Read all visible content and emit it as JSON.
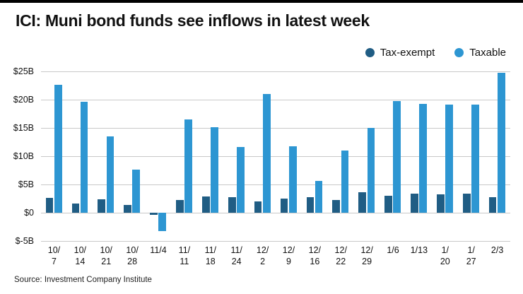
{
  "header": {
    "title": "ICI: Muni bond funds see inflows in latest week"
  },
  "legend": [
    {
      "label": "Tax-exempt",
      "color": "#205d84"
    },
    {
      "label": "Taxable",
      "color": "#2d96d2"
    }
  ],
  "source": "Source: Investment Company Institute",
  "chart_data": {
    "type": "bar",
    "title": "ICI: Muni bond funds see inflows in latest week",
    "xlabel": "",
    "ylabel": "",
    "ylim": [
      -5,
      25
    ],
    "grid": true,
    "legend_position": "top-right",
    "y_ticks": [
      25,
      20,
      15,
      10,
      5,
      0,
      -5
    ],
    "y_tick_labels": [
      "$25B",
      "$20B",
      "$15B",
      "$10B",
      "$5B",
      "$0",
      "$-5B"
    ],
    "categories": [
      "10/7",
      "10/14",
      "10/21",
      "10/28",
      "11/4",
      "11/11",
      "11/18",
      "11/24",
      "12/2",
      "12/9",
      "12/16",
      "12/22",
      "12/29",
      "1/6",
      "1/13",
      "1/20",
      "1/27",
      "2/3"
    ],
    "category_label_lines": [
      [
        "10/",
        "7"
      ],
      [
        "10/",
        "14"
      ],
      [
        "10/",
        "21"
      ],
      [
        "10/",
        "28"
      ],
      [
        "11/4"
      ],
      [
        "11/",
        "11"
      ],
      [
        "11/",
        "18"
      ],
      [
        "11/",
        "24"
      ],
      [
        "12/",
        "2"
      ],
      [
        "12/",
        "9"
      ],
      [
        "12/",
        "16"
      ],
      [
        "12/",
        "22"
      ],
      [
        "12/",
        "29"
      ],
      [
        "1/6"
      ],
      [
        "1/13"
      ],
      [
        "1/",
        "20"
      ],
      [
        "1/",
        "27"
      ],
      [
        "2/3"
      ]
    ],
    "series": [
      {
        "name": "Tax-exempt",
        "color": "#205d84",
        "values": [
          2.6,
          1.6,
          2.4,
          1.4,
          -0.4,
          2.3,
          2.9,
          2.7,
          2.0,
          2.5,
          2.7,
          2.3,
          3.6,
          3.0,
          3.4,
          3.3,
          3.4,
          2.8
        ]
      },
      {
        "name": "Taxable",
        "color": "#2d96d2",
        "values": [
          22.6,
          19.6,
          13.5,
          7.6,
          -3.2,
          16.5,
          15.1,
          11.6,
          21.0,
          11.7,
          5.6,
          11.0,
          15.0,
          19.8,
          19.3,
          19.1,
          19.1,
          24.8
        ]
      }
    ]
  }
}
